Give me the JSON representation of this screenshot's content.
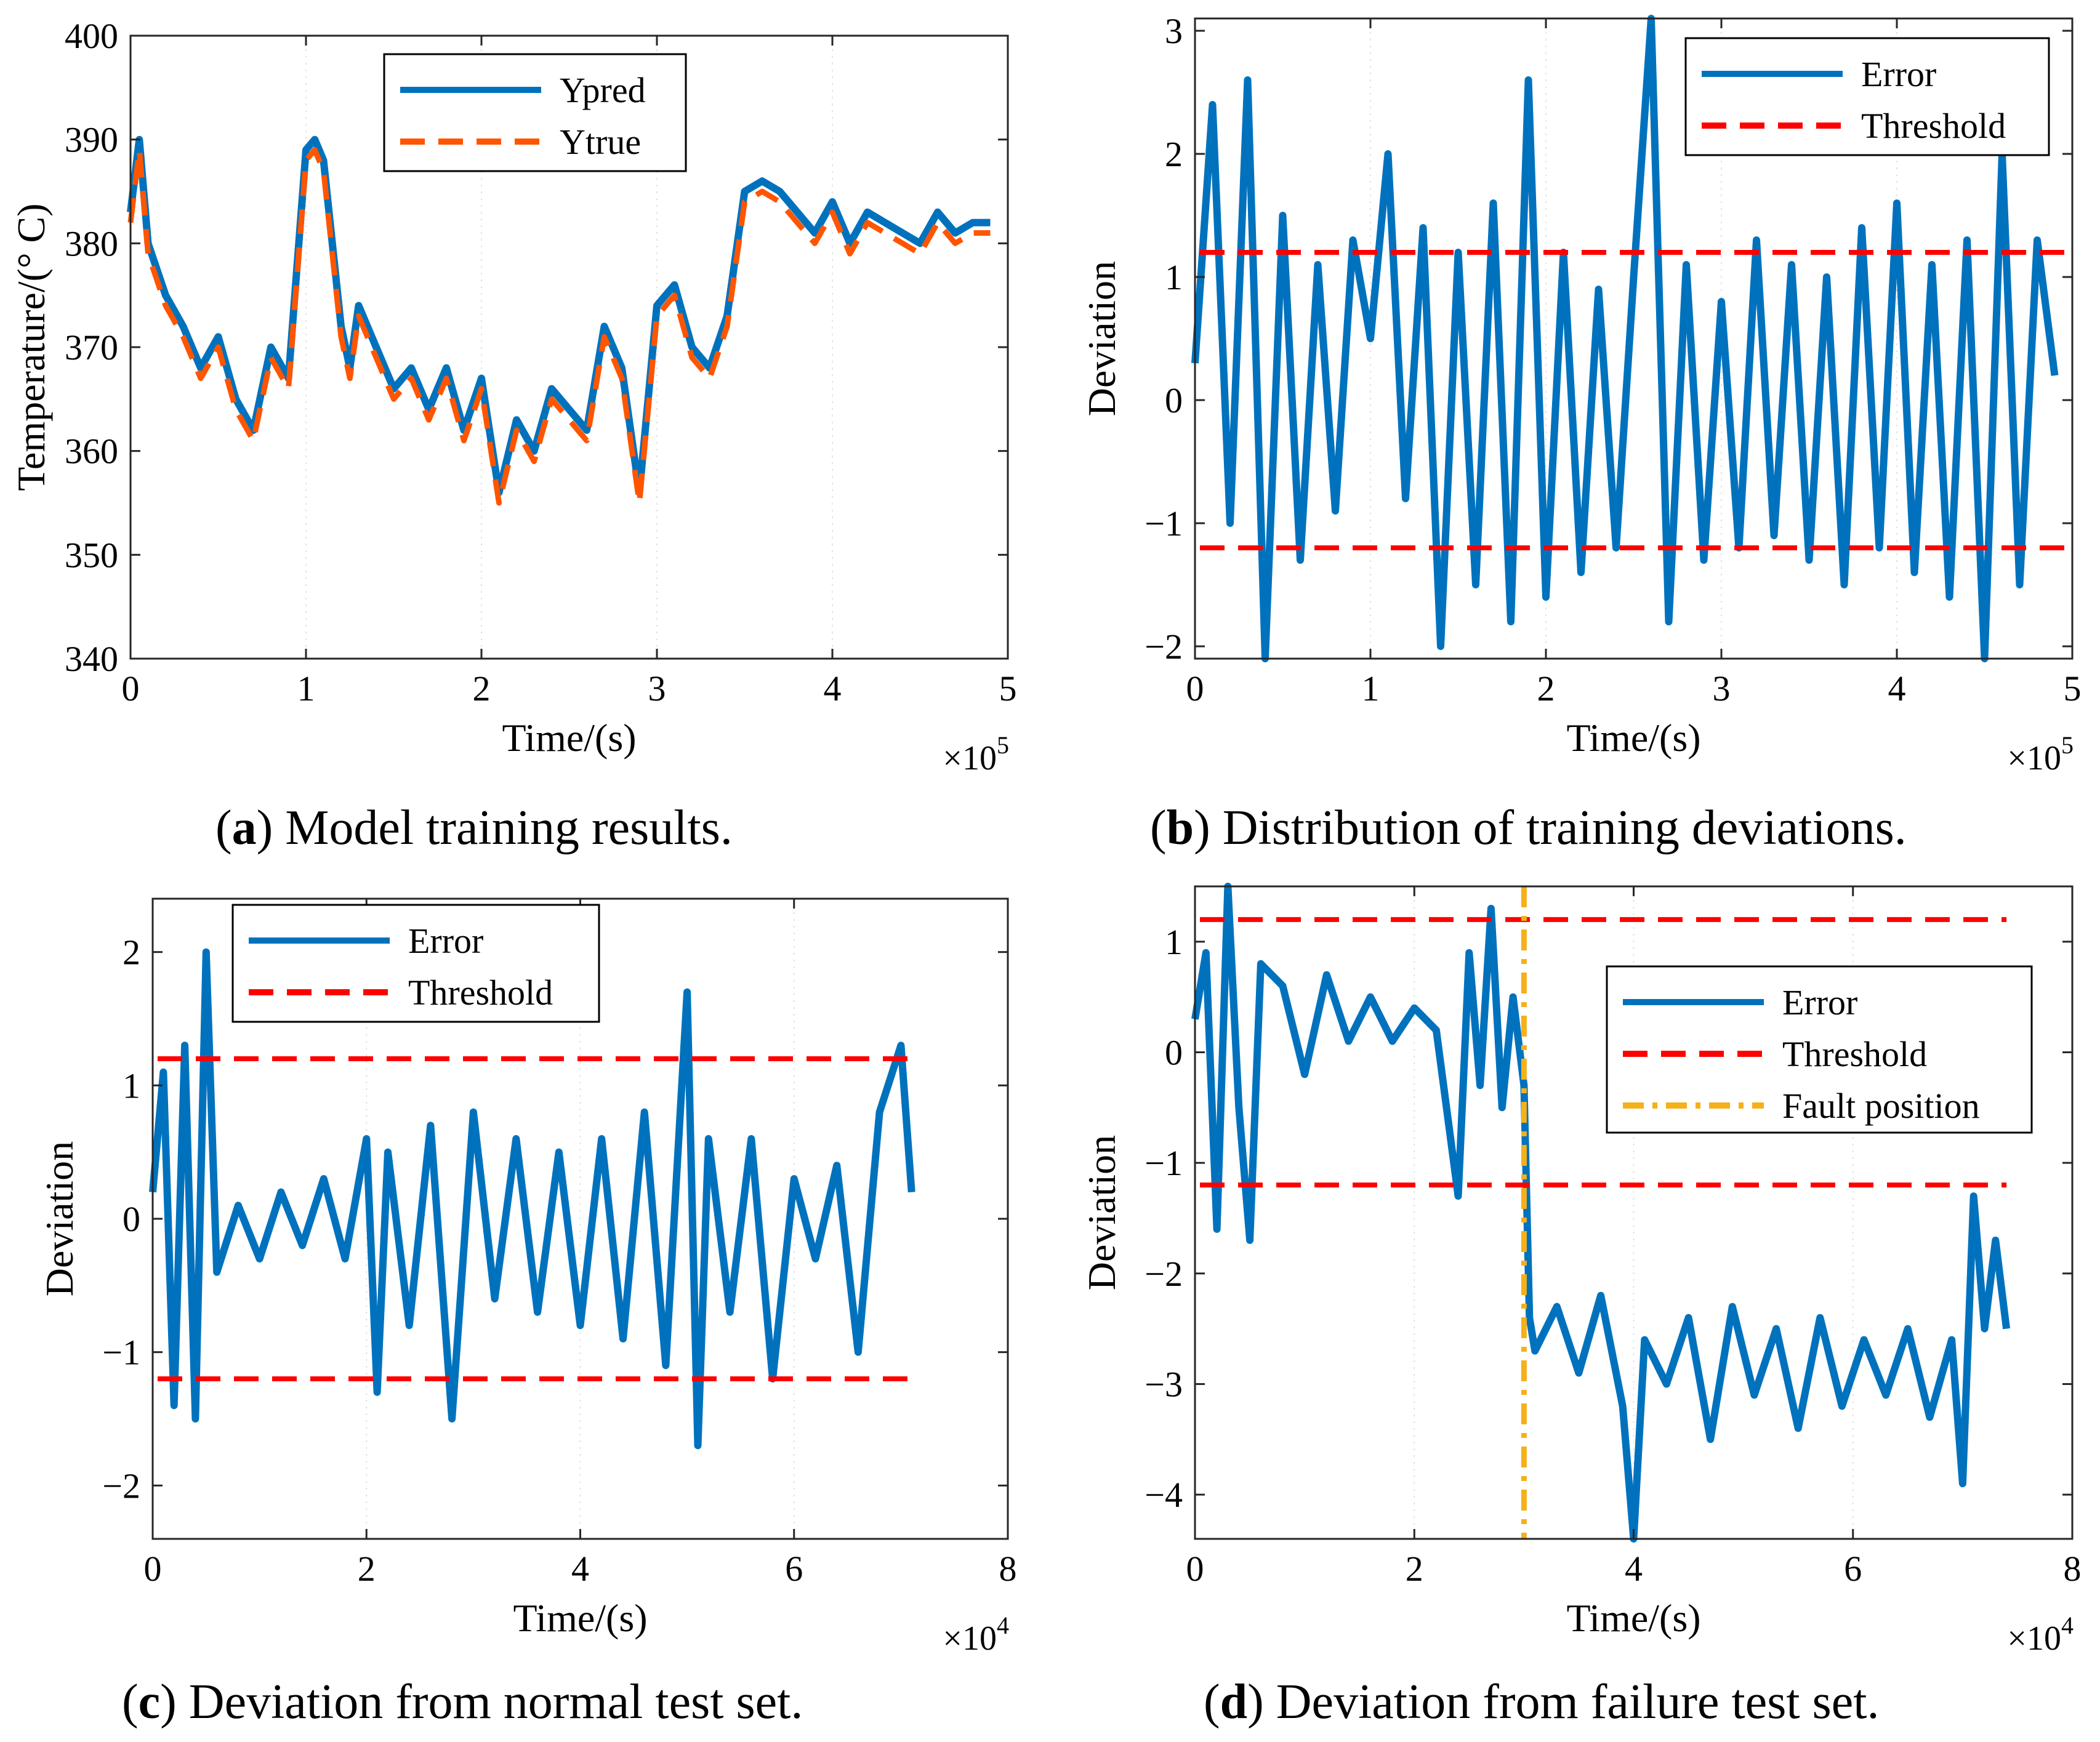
{
  "colors": {
    "series_blue": "#0072BD",
    "series_orange": "#FF5500",
    "threshold_red": "#FF0000",
    "fault_yellow": "#F5B01A",
    "axis": "#262626"
  },
  "captions": [
    {
      "letter": "a",
      "text": " Model training results."
    },
    {
      "letter": "b",
      "text": " Distribution of training deviations."
    },
    {
      "letter": "c",
      "text": " Deviation from normal test set."
    },
    {
      "letter": "d",
      "text": " Deviation from failure test set."
    }
  ],
  "chart_data": [
    {
      "id": "a",
      "type": "line",
      "xlabel": "Time/(s)",
      "ylabel": "Temperature/(° C)",
      "xlim": [
        0,
        5
      ],
      "ylim": [
        340,
        400
      ],
      "xticks": [
        0,
        1,
        2,
        3,
        4,
        5
      ],
      "yticks": [
        340,
        350,
        360,
        370,
        380,
        390,
        400
      ],
      "x_multiplier": {
        "base": "×10",
        "exp": "5"
      },
      "legend_position": "top-center",
      "series": [
        {
          "name": "Ypred",
          "style": "solid",
          "color": "#0072BD",
          "x": [
            0,
            0.05,
            0.1,
            0.2,
            0.3,
            0.4,
            0.5,
            0.6,
            0.7,
            0.8,
            0.9,
            1.0,
            1.05,
            1.1,
            1.2,
            1.25,
            1.3,
            1.4,
            1.5,
            1.6,
            1.7,
            1.8,
            1.9,
            2.0,
            2.1,
            2.2,
            2.3,
            2.4,
            2.5,
            2.6,
            2.7,
            2.8,
            2.9,
            3.0,
            3.1,
            3.2,
            3.3,
            3.4,
            3.5,
            3.6,
            3.7,
            3.8,
            3.9,
            4.0,
            4.1,
            4.2,
            4.3,
            4.4,
            4.5,
            4.6,
            4.7,
            4.8,
            4.9
          ],
          "y": [
            383,
            390,
            380,
            375,
            372,
            368,
            371,
            365,
            362,
            370,
            367,
            389,
            390,
            388,
            372,
            368,
            374,
            370,
            366,
            368,
            364,
            368,
            362,
            367,
            356,
            363,
            360,
            366,
            364,
            362,
            372,
            368,
            356,
            374,
            376,
            370,
            368,
            373,
            385,
            386,
            385,
            383,
            381,
            384,
            380,
            383,
            382,
            381,
            380,
            383,
            381,
            382,
            382
          ]
        },
        {
          "name": "Ytrue",
          "style": "dashed",
          "color": "#FF5500",
          "x": [
            0,
            0.05,
            0.1,
            0.2,
            0.3,
            0.4,
            0.5,
            0.6,
            0.7,
            0.8,
            0.9,
            1.0,
            1.05,
            1.1,
            1.2,
            1.25,
            1.3,
            1.4,
            1.5,
            1.6,
            1.7,
            1.8,
            1.9,
            2.0,
            2.1,
            2.2,
            2.3,
            2.4,
            2.5,
            2.6,
            2.7,
            2.8,
            2.9,
            3.0,
            3.1,
            3.2,
            3.3,
            3.4,
            3.5,
            3.6,
            3.7,
            3.8,
            3.9,
            4.0,
            4.1,
            4.2,
            4.3,
            4.4,
            4.5,
            4.6,
            4.7,
            4.8,
            4.9
          ],
          "y": [
            382,
            389,
            379,
            374,
            371,
            367,
            370,
            364,
            361,
            369,
            366,
            388,
            389,
            387,
            371,
            367,
            373,
            369,
            365,
            367,
            363,
            367,
            361,
            366,
            355,
            362,
            359,
            365,
            363,
            361,
            371,
            367,
            355,
            373,
            375,
            369,
            367,
            372,
            384,
            385,
            384,
            382,
            380,
            383,
            379,
            382,
            381,
            380,
            379,
            382,
            380,
            381,
            381
          ]
        }
      ]
    },
    {
      "id": "b",
      "type": "line",
      "xlabel": "Time/(s)",
      "ylabel": "Deviation",
      "xlim": [
        0,
        5
      ],
      "ylim": [
        -2.1,
        3.1
      ],
      "xticks": [
        0,
        1,
        2,
        3,
        4,
        5
      ],
      "yticks": [
        -2,
        -1,
        0,
        1,
        2,
        3
      ],
      "x_multiplier": {
        "base": "×10",
        "exp": "5"
      },
      "legend_position": "top-right",
      "series": [
        {
          "name": "Error",
          "style": "solid",
          "color": "#0072BD",
          "x": [
            0,
            0.1,
            0.2,
            0.3,
            0.4,
            0.5,
            0.6,
            0.7,
            0.8,
            0.9,
            1.0,
            1.1,
            1.2,
            1.3,
            1.4,
            1.5,
            1.6,
            1.7,
            1.8,
            1.9,
            2.0,
            2.1,
            2.2,
            2.3,
            2.4,
            2.5,
            2.6,
            2.7,
            2.8,
            2.9,
            3.0,
            3.1,
            3.2,
            3.3,
            3.4,
            3.5,
            3.6,
            3.7,
            3.8,
            3.9,
            4.0,
            4.1,
            4.2,
            4.3,
            4.4,
            4.5,
            4.6,
            4.7,
            4.8,
            4.9
          ],
          "y": [
            0.3,
            2.4,
            -1.0,
            2.6,
            -2.1,
            1.5,
            -1.3,
            1.1,
            -0.9,
            1.3,
            0.5,
            2.0,
            -0.8,
            1.4,
            -2.0,
            1.2,
            -1.5,
            1.6,
            -1.8,
            2.6,
            -1.6,
            1.2,
            -1.4,
            0.9,
            -1.2,
            1.0,
            3.1,
            -1.8,
            1.1,
            -1.3,
            0.8,
            -1.2,
            1.3,
            -1.1,
            1.1,
            -1.3,
            1.0,
            -1.5,
            1.4,
            -1.2,
            1.6,
            -1.4,
            1.1,
            -1.6,
            1.3,
            -2.1,
            2.0,
            -1.5,
            1.3,
            0.2
          ]
        },
        {
          "name": "Threshold",
          "style": "dashed",
          "color": "#FF0000",
          "y_values": [
            1.2,
            -1.2
          ]
        }
      ]
    },
    {
      "id": "c",
      "type": "line",
      "xlabel": "Time/(s)",
      "ylabel": "Deviation",
      "xlim": [
        0,
        8
      ],
      "ylim": [
        -2.4,
        2.4
      ],
      "xticks": [
        0,
        2,
        4,
        6,
        8
      ],
      "yticks": [
        -2,
        -1,
        0,
        1,
        2
      ],
      "x_multiplier": {
        "base": "×10",
        "exp": "4"
      },
      "legend_position": "top-left",
      "series": [
        {
          "name": "Error",
          "style": "solid",
          "color": "#0072BD",
          "x": [
            0,
            0.1,
            0.2,
            0.3,
            0.4,
            0.5,
            0.6,
            0.8,
            1.0,
            1.2,
            1.4,
            1.6,
            1.8,
            2.0,
            2.1,
            2.2,
            2.4,
            2.6,
            2.8,
            3.0,
            3.2,
            3.4,
            3.6,
            3.8,
            4.0,
            4.2,
            4.4,
            4.6,
            4.8,
            5.0,
            5.1,
            5.2,
            5.4,
            5.6,
            5.8,
            6.0,
            6.2,
            6.4,
            6.6,
            6.8,
            7.0,
            7.1
          ],
          "y": [
            0.2,
            1.1,
            -1.4,
            1.3,
            -1.5,
            2.0,
            -0.4,
            0.1,
            -0.3,
            0.2,
            -0.2,
            0.3,
            -0.3,
            0.6,
            -1.3,
            0.5,
            -0.8,
            0.7,
            -1.5,
            0.8,
            -0.6,
            0.6,
            -0.7,
            0.5,
            -0.8,
            0.6,
            -0.9,
            0.8,
            -1.1,
            1.7,
            -1.7,
            0.6,
            -0.7,
            0.6,
            -1.2,
            0.3,
            -0.3,
            0.4,
            -1.0,
            0.8,
            1.3,
            0.2
          ]
        },
        {
          "name": "Threshold",
          "style": "dashed",
          "color": "#FF0000",
          "y_values": [
            1.2,
            -1.2
          ]
        }
      ]
    },
    {
      "id": "d",
      "type": "line",
      "xlabel": "Time/(s)",
      "ylabel": "Deviation",
      "xlim": [
        0,
        8
      ],
      "ylim": [
        -4.4,
        1.5
      ],
      "xticks": [
        0,
        2,
        4,
        6,
        8
      ],
      "yticks": [
        -4,
        -3,
        -2,
        -1,
        0,
        1
      ],
      "x_multiplier": {
        "base": "×10",
        "exp": "4"
      },
      "legend_position": "top-right",
      "series": [
        {
          "name": "Error",
          "style": "solid",
          "color": "#0072BD",
          "x": [
            0,
            0.1,
            0.2,
            0.3,
            0.4,
            0.5,
            0.6,
            0.8,
            1.0,
            1.2,
            1.4,
            1.6,
            1.8,
            2.0,
            2.2,
            2.4,
            2.5,
            2.6,
            2.7,
            2.8,
            2.9,
            3.0,
            3.05,
            3.1,
            3.3,
            3.5,
            3.7,
            3.9,
            4.0,
            4.1,
            4.3,
            4.5,
            4.7,
            4.9,
            5.1,
            5.3,
            5.5,
            5.7,
            5.9,
            6.1,
            6.3,
            6.5,
            6.7,
            6.9,
            7.0,
            7.1,
            7.2,
            7.3,
            7.4
          ],
          "y": [
            0.3,
            0.9,
            -1.6,
            1.5,
            -0.5,
            -1.7,
            0.8,
            0.6,
            -0.2,
            0.7,
            0.1,
            0.5,
            0.1,
            0.4,
            0.2,
            -1.3,
            0.9,
            -0.3,
            1.3,
            -0.5,
            0.5,
            -0.3,
            -2.4,
            -2.7,
            -2.3,
            -2.9,
            -2.2,
            -3.2,
            -4.4,
            -2.6,
            -3.0,
            -2.4,
            -3.5,
            -2.3,
            -3.1,
            -2.5,
            -3.4,
            -2.4,
            -3.2,
            -2.6,
            -3.1,
            -2.5,
            -3.3,
            -2.6,
            -3.9,
            -1.3,
            -2.5,
            -1.7,
            -2.5
          ]
        },
        {
          "name": "Threshold",
          "style": "dashed",
          "color": "#FF0000",
          "y_values": [
            1.2,
            -1.2
          ]
        },
        {
          "name": "Fault position",
          "style": "dashdot",
          "color": "#F5B01A",
          "x_value": 3.0
        }
      ]
    }
  ]
}
